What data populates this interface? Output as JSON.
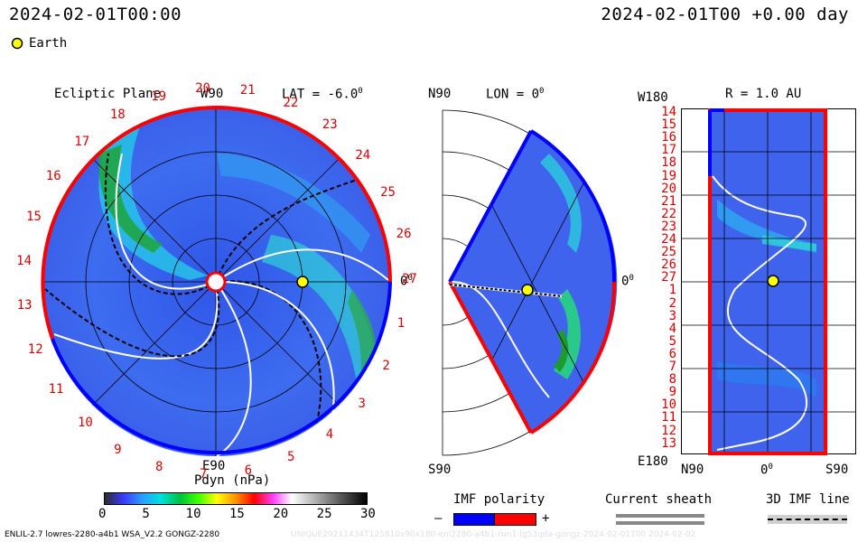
{
  "header": {
    "left_time": "2024-02-01T00:00",
    "right_time": "2024-02-01T00 +0.00 day",
    "legend_label": "Earth",
    "legend_color": "#ffff00"
  },
  "panels": {
    "ecliptic": {
      "title": "Ecliptic Plane",
      "lat_label": "LAT = -6.0",
      "deg_sup": "0",
      "top_label": "W90",
      "bottom_label": "E90",
      "right_label": "0",
      "sectors": [
        "20",
        "21",
        "22",
        "23",
        "24",
        "25",
        "26",
        "27",
        "1",
        "2",
        "3",
        "4",
        "5",
        "6",
        "7",
        "8",
        "9",
        "10",
        "11",
        "12",
        "13",
        "14",
        "15",
        "16",
        "17",
        "18",
        "19"
      ]
    },
    "meridional": {
      "top_left_label": "N90",
      "lon_label": "LON = 0",
      "deg_sup": "0",
      "bottom_label": "S90",
      "right_label": "0"
    },
    "radial": {
      "left_top_label": "W180",
      "title": "R = 1.0 AU",
      "left_bottom_label": "E180",
      "bottom_labels": [
        "N90",
        "0",
        "S90"
      ],
      "rows": [
        "14",
        "15",
        "16",
        "17",
        "18",
        "19",
        "20",
        "21",
        "22",
        "23",
        "24",
        "25",
        "26",
        "27",
        "1",
        "2",
        "3",
        "4",
        "5",
        "6",
        "7",
        "8",
        "9",
        "10",
        "11",
        "12",
        "13"
      ]
    }
  },
  "colorbar": {
    "title": "Pdyn (nPa)",
    "ticks": [
      "0",
      "5",
      "10",
      "15",
      "20",
      "25",
      "30"
    ],
    "stops": [
      "#2b2b2b",
      "#3a3aff",
      "#2a9cff",
      "#00e0e0",
      "#00c040",
      "#40ff00",
      "#ffff00",
      "#ff9000",
      "#ff0000",
      "#ff40ff",
      "#ffffff",
      "#c0c0c0",
      "#808080",
      "#404040",
      "#000000"
    ]
  },
  "legends": {
    "imf_title": "IMF polarity",
    "imf_minus": "–",
    "imf_plus": "+",
    "imf_neg_color": "#0000ff",
    "imf_pos_color": "#ff0000",
    "sheath_title": "Current sheath",
    "imf3d_title": "3D IMF line"
  },
  "footer": {
    "left": "ENLIL-2.7 lowres-2280-a4b1 WSA_V2.2 GONGZ-2280",
    "right": "UNIQUE20211434T125810x90x180-enl2280-a4b1-run1-lg53qda-gongz-2024-02-01T00 2024-02-02"
  }
}
